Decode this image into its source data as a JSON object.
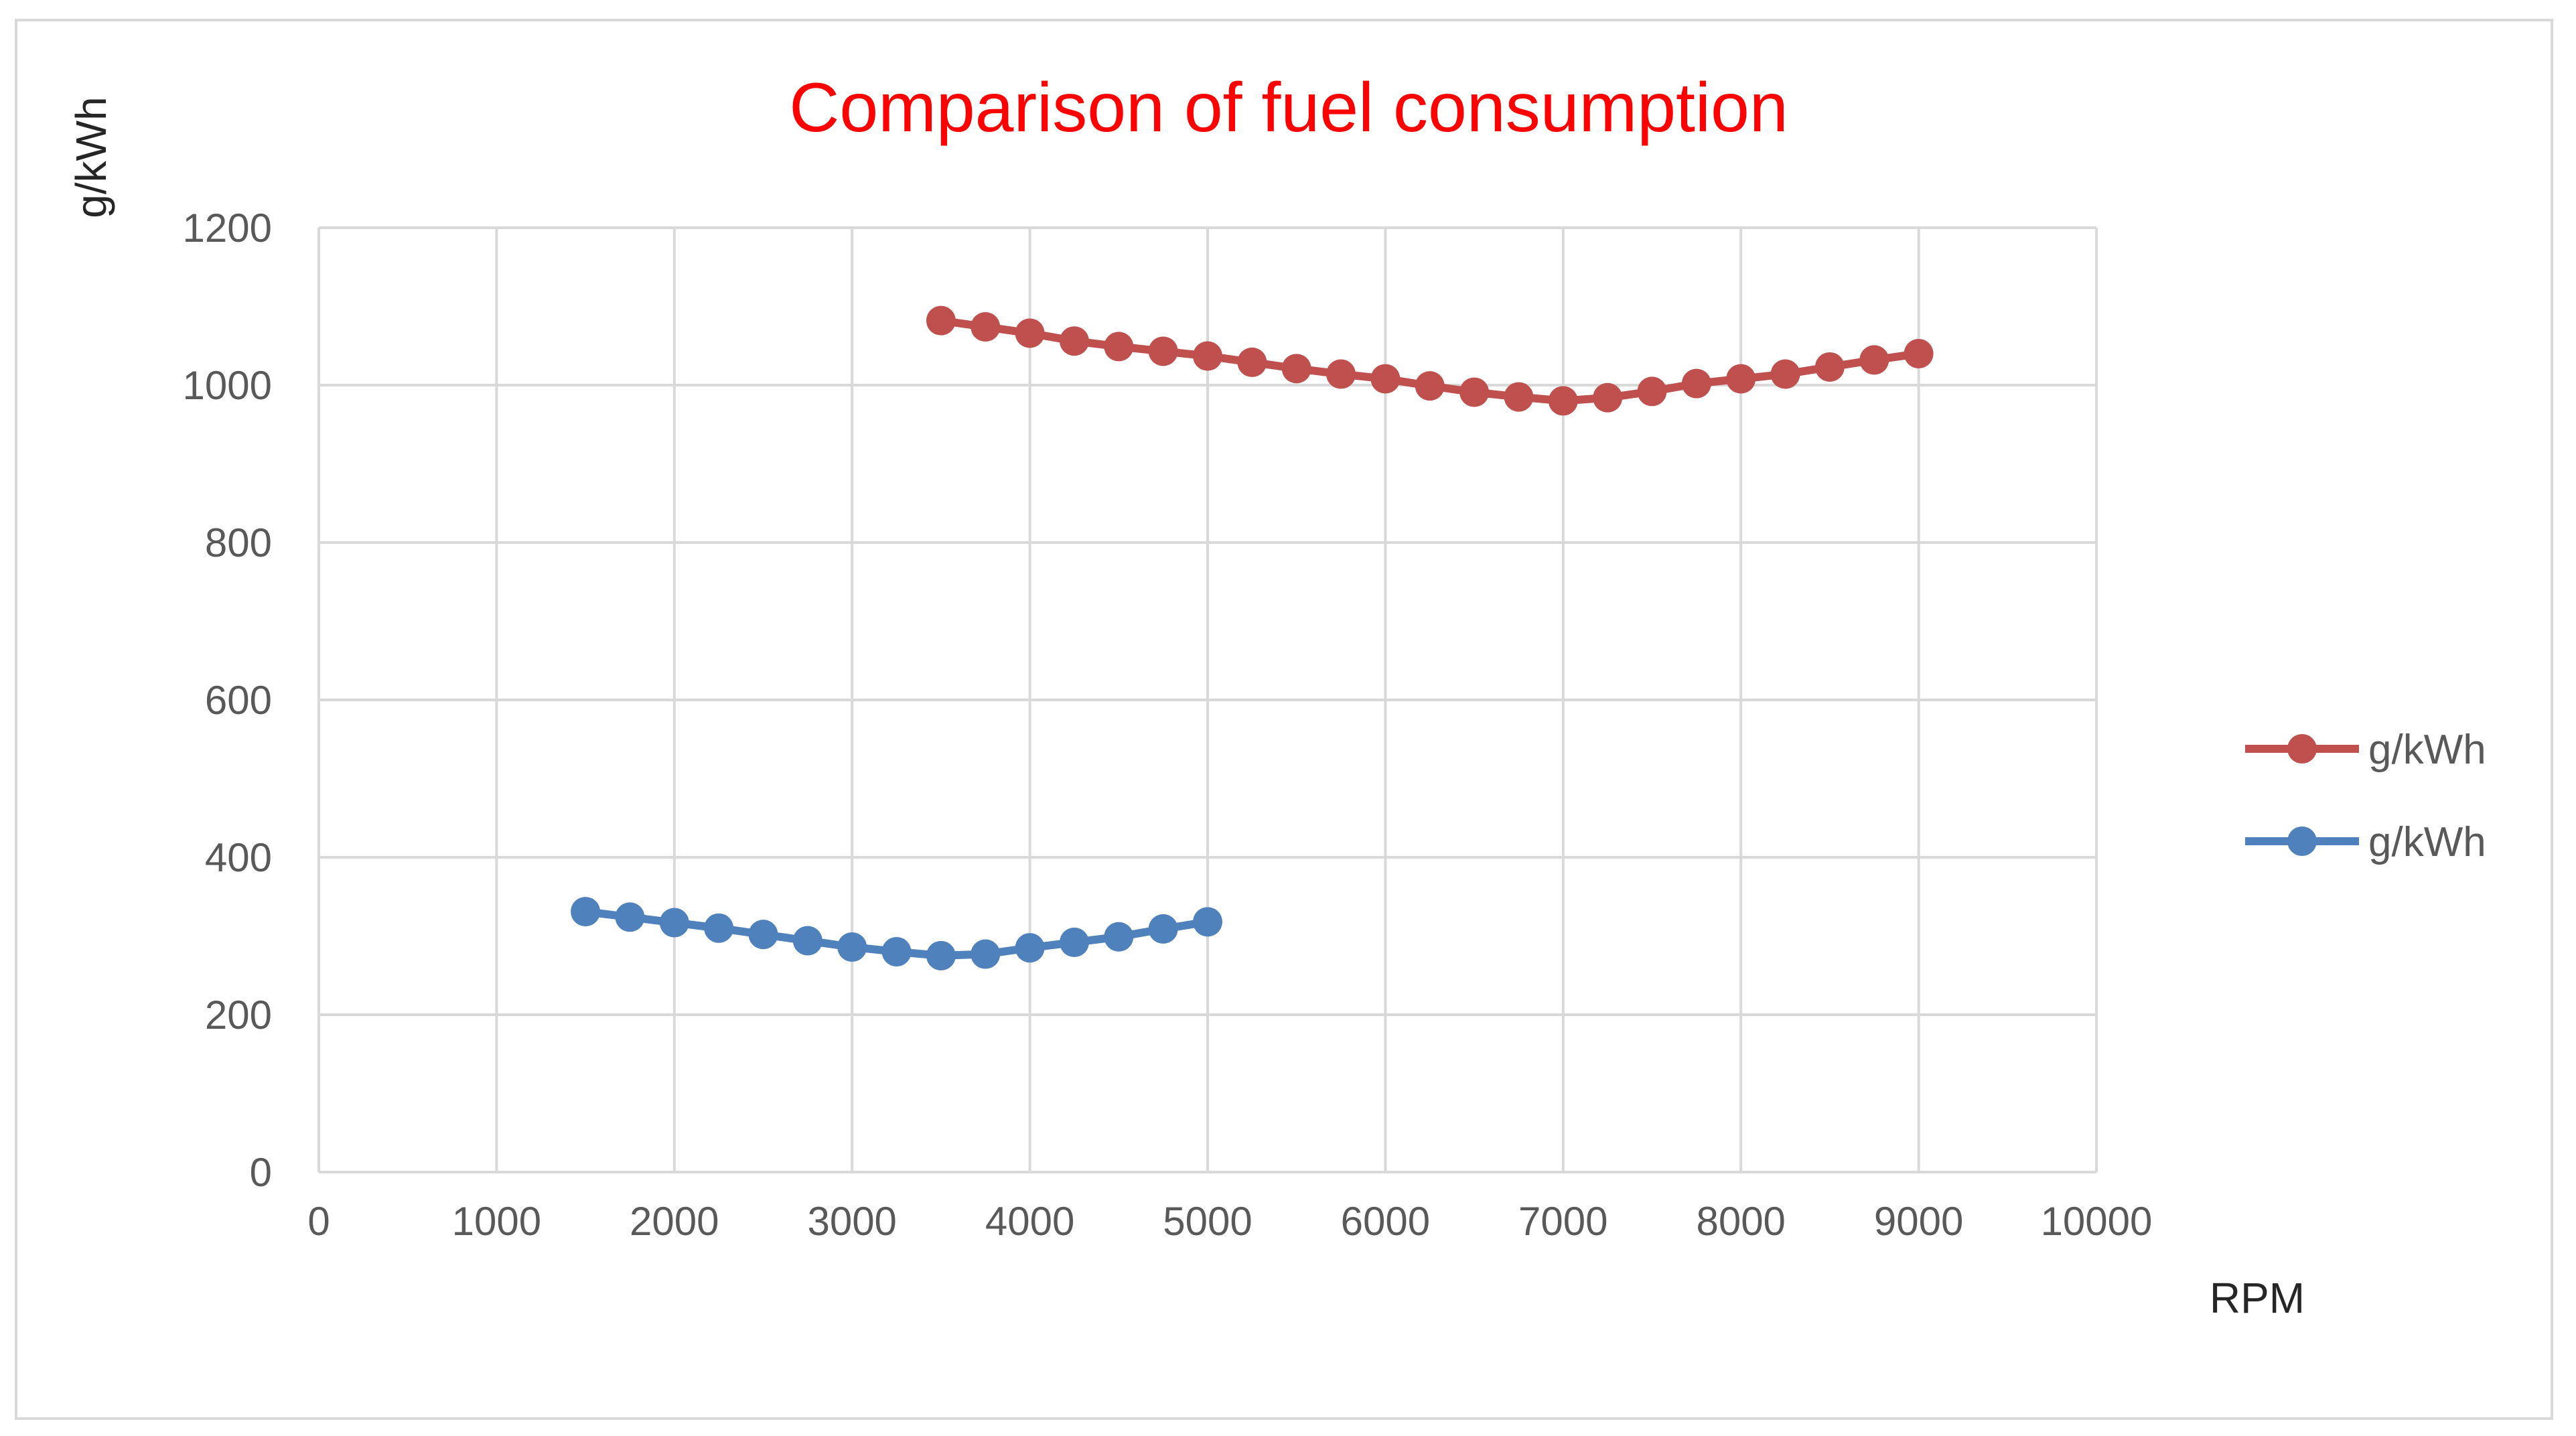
{
  "chart_data": {
    "type": "scatter",
    "title": "Comparison of fuel consumption",
    "title_color": "#ff0000",
    "xlabel": "RPM",
    "ylabel": "g/kWh",
    "xlim": [
      0,
      10000
    ],
    "ylim": [
      0,
      1200
    ],
    "xticks": [
      0,
      1000,
      2000,
      3000,
      4000,
      5000,
      6000,
      7000,
      8000,
      9000,
      10000
    ],
    "yticks": [
      0,
      200,
      400,
      600,
      800,
      1000,
      1200
    ],
    "grid": true,
    "legend_position": "right",
    "series": [
      {
        "name": "g/kWh",
        "color": "#c0504d",
        "x": [
          3500,
          3750,
          4000,
          4250,
          4500,
          4750,
          5000,
          5250,
          5500,
          5750,
          6000,
          6250,
          6500,
          6750,
          7000,
          7250,
          7500,
          7750,
          8000,
          8250,
          8500,
          8750,
          9000
        ],
        "y": [
          1082,
          1074,
          1066,
          1056,
          1049,
          1043,
          1037,
          1029,
          1021,
          1014,
          1008,
          999,
          991,
          985,
          980,
          984,
          992,
          1002,
          1008,
          1014,
          1023,
          1032,
          1040
        ]
      },
      {
        "name": "g/kWh",
        "color": "#4f81bd",
        "x": [
          1500,
          1750,
          2000,
          2250,
          2500,
          2750,
          3000,
          3250,
          3500,
          3750,
          4000,
          4250,
          4500,
          4750,
          5000
        ],
        "y": [
          331,
          324,
          317,
          310,
          302,
          294,
          286,
          280,
          275,
          277,
          285,
          292,
          299,
          309,
          318
        ]
      }
    ]
  }
}
